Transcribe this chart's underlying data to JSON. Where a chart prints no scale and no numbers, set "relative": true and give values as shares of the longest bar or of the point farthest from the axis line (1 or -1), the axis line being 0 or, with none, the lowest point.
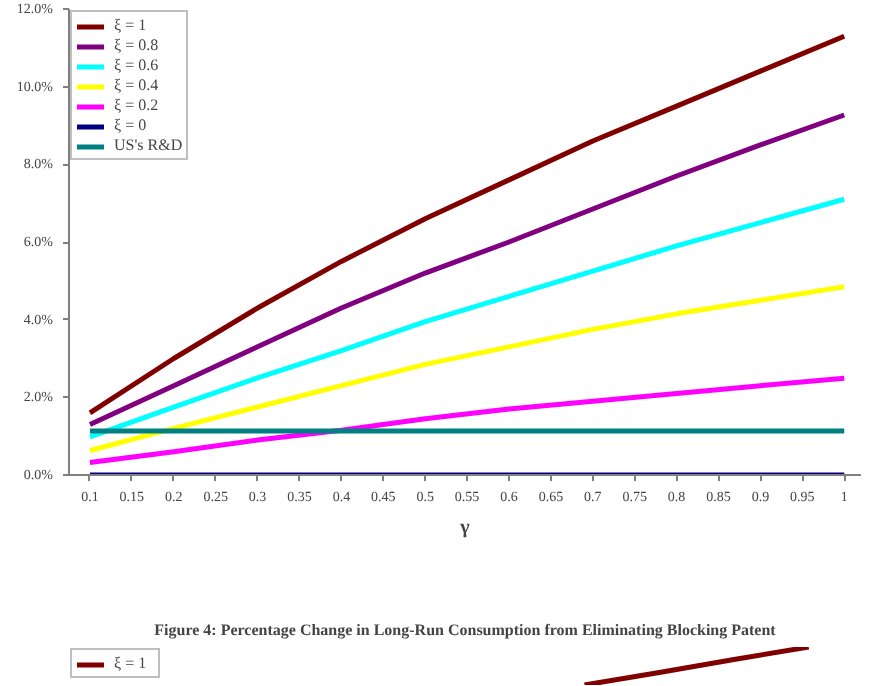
{
  "chart_data": [
    {
      "type": "line",
      "xlabel": "γ",
      "x": [
        0.1,
        0.2,
        0.3,
        0.4,
        0.5,
        0.6,
        0.7,
        0.8,
        0.9,
        1.0
      ],
      "series": [
        {
          "name": "ξ = 1",
          "color": "#800000",
          "values": [
            1.6,
            3.0,
            4.3,
            5.5,
            6.6,
            7.6,
            8.6,
            9.5,
            10.4,
            11.3
          ]
        },
        {
          "name": "ξ = 0.8",
          "color": "#800080",
          "values": [
            1.3,
            2.3,
            3.3,
            4.3,
            5.2,
            6.0,
            6.85,
            7.7,
            8.5,
            9.27
          ]
        },
        {
          "name": "ξ = 0.6",
          "color": "#00ffff",
          "values": [
            0.98,
            1.75,
            2.5,
            3.2,
            3.95,
            4.6,
            5.25,
            5.9,
            6.5,
            7.1
          ]
        },
        {
          "name": "ξ = 0.4",
          "color": "#ffff00",
          "values": [
            0.63,
            1.2,
            1.75,
            2.3,
            2.85,
            3.3,
            3.75,
            4.15,
            4.5,
            4.85
          ]
        },
        {
          "name": "ξ = 0.2",
          "color": "#ff00ff",
          "values": [
            0.32,
            0.6,
            0.9,
            1.15,
            1.45,
            1.7,
            1.9,
            2.1,
            2.3,
            2.49
          ]
        },
        {
          "name": "ξ = 0",
          "color": "#000080",
          "values": [
            0,
            0,
            0,
            0,
            0,
            0,
            0,
            0,
            0,
            0
          ]
        },
        {
          "name": "US's R&D",
          "color": "#008080",
          "values": [
            1.13,
            1.13,
            1.13,
            1.13,
            1.13,
            1.13,
            1.13,
            1.13,
            1.13,
            1.13
          ]
        }
      ],
      "xlim": [
        0.075,
        1.02
      ],
      "xticks": [
        0.1,
        0.15,
        0.2,
        0.25,
        0.3,
        0.35,
        0.4,
        0.45,
        0.5,
        0.55,
        0.6,
        0.65,
        0.7,
        0.75,
        0.8,
        0.85,
        0.9,
        0.95,
        1
      ],
      "ylim": [
        0,
        12
      ],
      "yticks": [
        {
          "value": 0,
          "label": "0.0%"
        },
        {
          "value": 2,
          "label": "2.0%"
        },
        {
          "value": 4,
          "label": "4.0%"
        },
        {
          "value": 6,
          "label": "6.0%"
        },
        {
          "value": 8,
          "label": "8.0%"
        },
        {
          "value": 10,
          "label": "10.0%"
        },
        {
          "value": 12,
          "label": "12.0%"
        }
      ],
      "grid": false,
      "legend": "top left",
      "marker": "none",
      "line_style": "solid"
    },
    {
      "type": "line",
      "title": "Figure 4: Percentage Change in Long-Run Consumption from Eliminating Blocking Patent",
      "relative": true,
      "categories": [
        null,
        null,
        null,
        null
      ],
      "series": [
        {
          "name": "ξ = 1",
          "color": "#800000",
          "values": [
            0,
            0.33,
            0.67,
            1.0
          ]
        }
      ],
      "tick_labels": false,
      "grid": false,
      "legend": "top left",
      "marker": "none",
      "line_style": "solid"
    }
  ]
}
